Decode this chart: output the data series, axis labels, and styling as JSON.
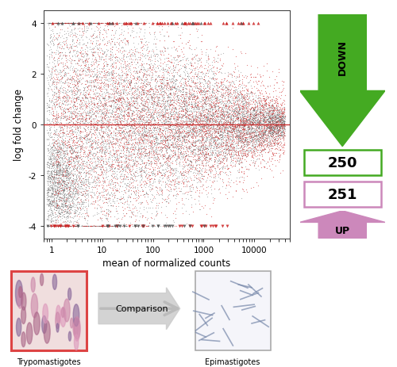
{
  "xlabel": "mean of normalized counts",
  "ylabel": "log fold change",
  "xlim_log": [
    0.7,
    50000
  ],
  "ylim": [
    -4.5,
    4.5
  ],
  "yticks": [
    -4,
    -2,
    0,
    2,
    4
  ],
  "xticks_log": [
    1,
    10,
    100,
    1000,
    10000
  ],
  "xtick_labels": [
    "1",
    "10",
    "100",
    "1000",
    "10000"
  ],
  "hline_color": "#cc3333",
  "scatter_gray_color": "#555555",
  "scatter_red_color": "#cc2222",
  "down_count": "250",
  "up_count": "251",
  "down_arrow_color": "#44aa22",
  "up_arrow_color": "#cc88bb",
  "down_box_color": "#44aa22",
  "up_box_color": "#cc88bb",
  "n_gray": 10000,
  "n_red": 6000,
  "seed": 42,
  "background_color": "#ffffff"
}
